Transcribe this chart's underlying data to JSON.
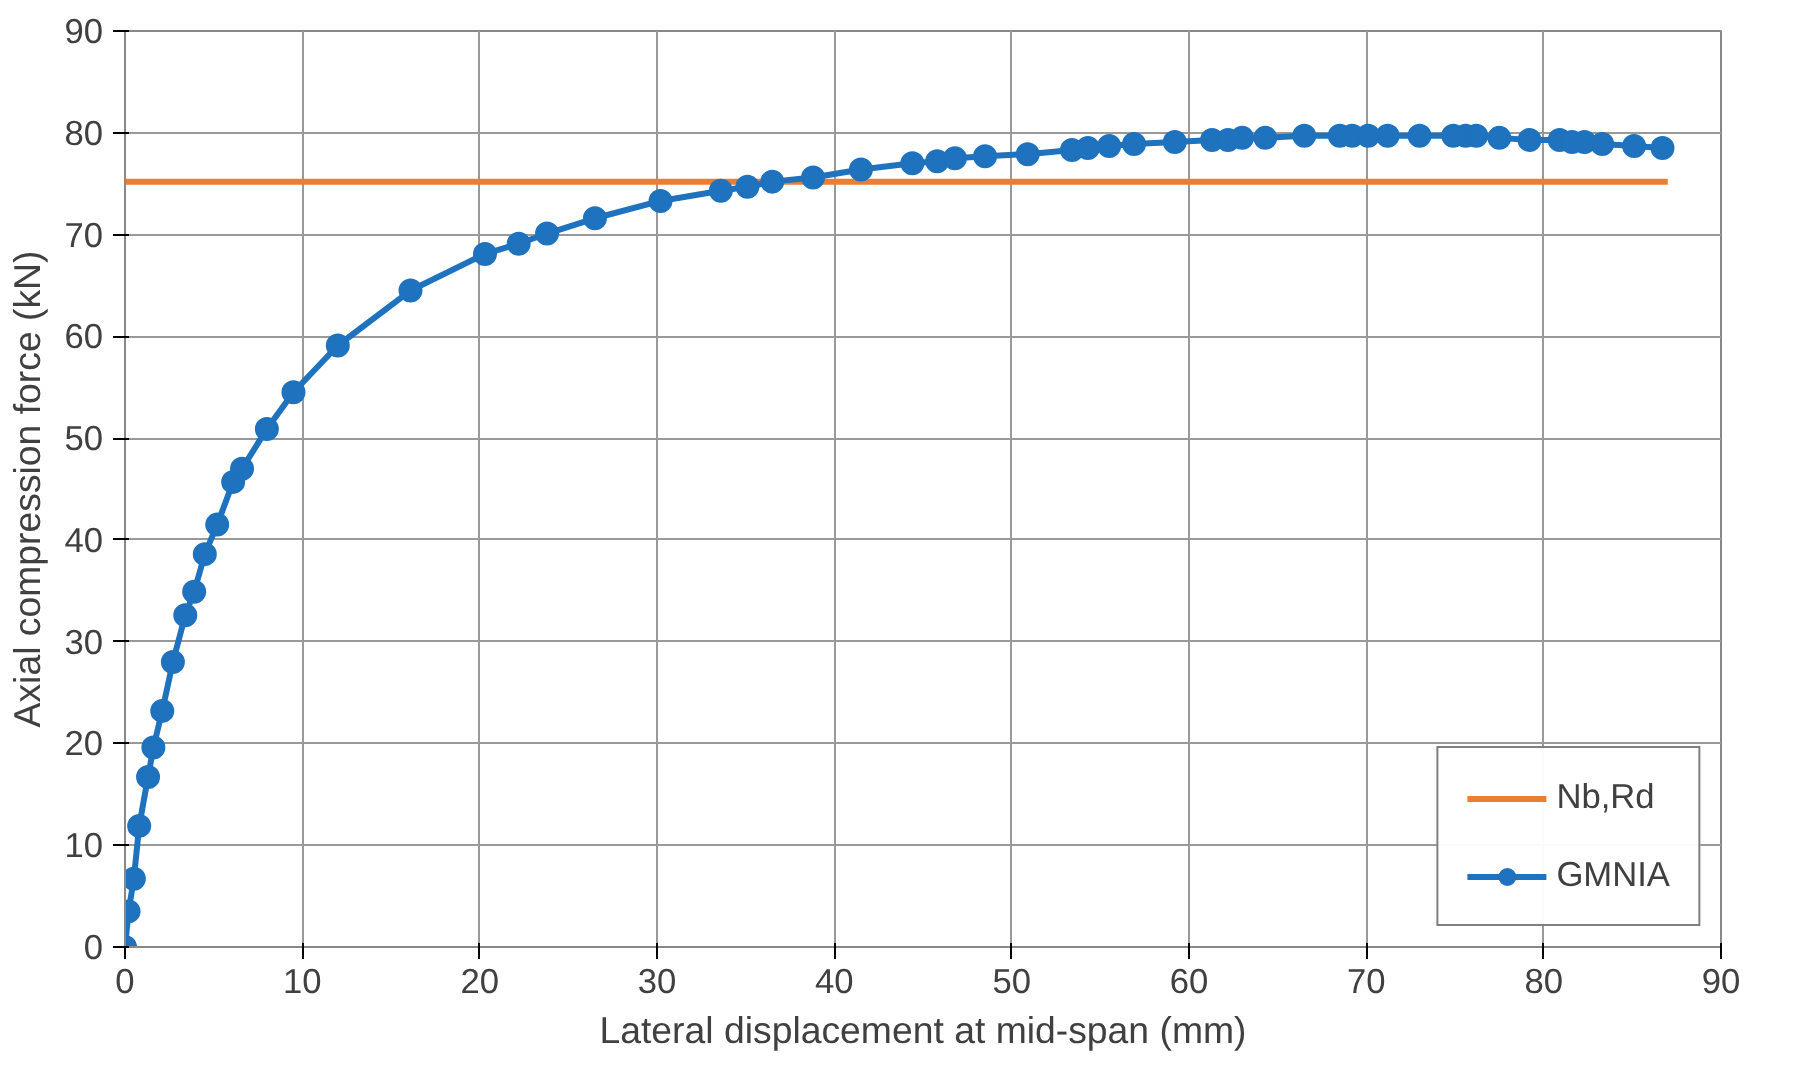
{
  "chart_data": {
    "type": "line",
    "xlabel": "Lateral displacement at mid-span (mm)",
    "ylabel": "Axial compression force (kN)",
    "xlim": [
      0,
      90
    ],
    "ylim": [
      0,
      90
    ],
    "xticks": [
      0,
      10,
      20,
      30,
      40,
      50,
      60,
      70,
      80,
      90
    ],
    "yticks": [
      0,
      10,
      20,
      30,
      40,
      50,
      60,
      70,
      80,
      90
    ],
    "grid": true,
    "legend": "bottom right",
    "line_style": "solid",
    "series": [
      {
        "name": "Nb,Rd",
        "color": "#ed7d31",
        "marker": "none",
        "x": [
          0,
          87
        ],
        "values": [
          75.2,
          75.2
        ]
      },
      {
        "name": "GMNIA",
        "color": "#1f72bd",
        "marker": "circle",
        "x": [
          0,
          0.2,
          0.5,
          0.8,
          1.3,
          1.6,
          2.1,
          2.7,
          3.4,
          3.9,
          4.5,
          5.2,
          6.1,
          6.6,
          8.0,
          9.5,
          12,
          16.1,
          20.3,
          22.2,
          23.8,
          26.5,
          30.2,
          33.6,
          35.1,
          36.5,
          38.8,
          41.5,
          44.4,
          45.8,
          46.8,
          48.5,
          50.9,
          53.4,
          54.3,
          55.5,
          56.9,
          59.2,
          61.3,
          62.2,
          63,
          64.3,
          66.5,
          68.5,
          69.2,
          70.1,
          71.2,
          73,
          74.9,
          75.6,
          76.2,
          77.5,
          79.2,
          80.9,
          81.6,
          82.3,
          83.3,
          85.1,
          86.7
        ],
        "values": [
          0,
          3.5,
          6.7,
          11.9,
          16.7,
          19.6,
          23.2,
          28,
          32.6,
          34.9,
          38.6,
          41.5,
          45.7,
          47,
          50.9,
          54.5,
          59.1,
          64.5,
          68.1,
          69.1,
          70.1,
          71.6,
          73.3,
          74.3,
          74.7,
          75.2,
          75.6,
          76.4,
          77,
          77.2,
          77.5,
          77.7,
          77.9,
          78.3,
          78.5,
          78.7,
          78.9,
          79.1,
          79.3,
          79.3,
          79.5,
          79.5,
          79.7,
          79.7,
          79.7,
          79.7,
          79.7,
          79.7,
          79.7,
          79.7,
          79.7,
          79.5,
          79.3,
          79.3,
          79.1,
          79.1,
          78.9,
          78.7,
          78.5
        ]
      }
    ]
  }
}
